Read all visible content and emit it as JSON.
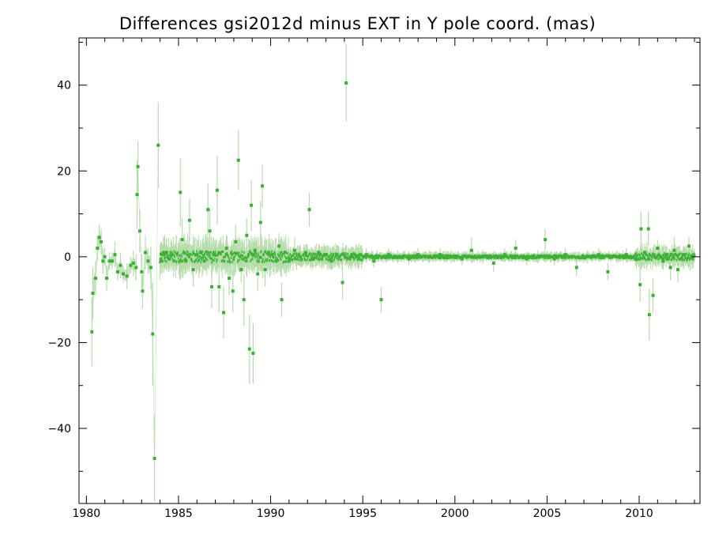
{
  "chart_data": {
    "type": "scatter",
    "title": "Differences gsi2012d minus EXT in Y pole coord. (mas)",
    "xlabel": "",
    "ylabel": "",
    "xlim": [
      1979.6,
      2013.3
    ],
    "ylim": [
      -57.5,
      51.0
    ],
    "x_ticks": [
      1980,
      1985,
      1990,
      1995,
      2000,
      2005,
      2010
    ],
    "x_tick_labels": [
      "1980",
      "1985",
      "1990",
      "1995",
      "2000",
      "2005",
      "2010"
    ],
    "y_ticks": [
      -40,
      -20,
      0,
      20,
      40
    ],
    "y_tick_labels": [
      "−40",
      "−20",
      "0",
      "20",
      "40"
    ],
    "grid": false,
    "legend": "none",
    "colors": {
      "point": "#3cb035",
      "errorbar": "#b5dcaa",
      "axis": "#000000"
    },
    "series": [
      {
        "points": [
          [
            1980.3,
            -17.5,
            8
          ],
          [
            1980.35,
            -8.5,
            6
          ],
          [
            1980.5,
            -5,
            4
          ],
          [
            1980.6,
            2,
            3
          ],
          [
            1980.7,
            4.5,
            3
          ],
          [
            1980.8,
            3.5,
            3
          ],
          [
            1980.9,
            -1,
            3
          ],
          [
            1981.0,
            0,
            2
          ],
          [
            1981.1,
            -5,
            3
          ],
          [
            1981.25,
            -1,
            2
          ],
          [
            1981.4,
            -1,
            2
          ],
          [
            1981.55,
            0.5,
            3
          ],
          [
            1981.7,
            -3.5,
            2
          ],
          [
            1981.85,
            -2,
            3
          ],
          [
            1982.0,
            -4,
            2
          ],
          [
            1982.2,
            -4.5,
            3
          ],
          [
            1982.4,
            -2,
            2
          ],
          [
            1982.55,
            -1.5,
            3
          ],
          [
            1982.7,
            -2.5,
            3
          ],
          [
            1982.75,
            14.5,
            8
          ],
          [
            1982.8,
            21,
            6
          ],
          [
            1982.9,
            6,
            5
          ],
          [
            1983.0,
            -3.5,
            4
          ],
          [
            1983.05,
            -8,
            4
          ],
          [
            1983.2,
            1,
            4
          ],
          [
            1983.35,
            -1,
            3
          ],
          [
            1983.5,
            -2.5,
            5
          ],
          [
            1983.6,
            -18,
            12
          ],
          [
            1983.7,
            -47,
            10
          ],
          [
            1983.9,
            26,
            10
          ],
          [
            1984.05,
            -1,
            3
          ],
          [
            1984.2,
            0.5,
            2
          ],
          [
            1984.35,
            1,
            3
          ],
          [
            1984.5,
            -0.5,
            2
          ],
          [
            1984.65,
            0.5,
            2
          ],
          [
            1985.1,
            15,
            8
          ],
          [
            1985.2,
            4,
            5
          ],
          [
            1985.4,
            -1,
            3
          ],
          [
            1985.6,
            8.5,
            5
          ],
          [
            1985.8,
            -3,
            4
          ],
          [
            1986.0,
            0.5,
            2
          ],
          [
            1986.2,
            1,
            3
          ],
          [
            1986.4,
            -1,
            2
          ],
          [
            1986.6,
            11,
            6
          ],
          [
            1986.7,
            6,
            5
          ],
          [
            1986.8,
            -7,
            5
          ],
          [
            1986.95,
            0.5,
            2
          ],
          [
            1987.1,
            15.5,
            8
          ],
          [
            1987.2,
            -7,
            6
          ],
          [
            1987.45,
            -13,
            6
          ],
          [
            1987.6,
            2,
            3
          ],
          [
            1987.75,
            -5,
            4
          ],
          [
            1987.95,
            -8,
            5
          ],
          [
            1988.1,
            3.5,
            4
          ],
          [
            1988.25,
            22.5,
            7
          ],
          [
            1988.4,
            -3,
            3
          ],
          [
            1988.55,
            -10,
            6
          ],
          [
            1988.7,
            5,
            4
          ],
          [
            1988.85,
            -21.5,
            8
          ],
          [
            1988.95,
            12,
            6
          ],
          [
            1989.05,
            -22.5,
            7
          ],
          [
            1989.15,
            1.5,
            3
          ],
          [
            1989.3,
            -4,
            4
          ],
          [
            1989.45,
            8,
            5
          ],
          [
            1989.55,
            16.5,
            5
          ],
          [
            1989.7,
            -3,
            4
          ],
          [
            1989.9,
            1,
            3
          ],
          [
            1990.1,
            0.5,
            2
          ],
          [
            1990.3,
            -1,
            2
          ],
          [
            1990.45,
            2.5,
            3
          ],
          [
            1990.6,
            -10,
            4
          ],
          [
            1990.8,
            1,
            3
          ],
          [
            1991.0,
            -1,
            2
          ],
          [
            1991.3,
            1.5,
            3
          ],
          [
            1991.6,
            0,
            2
          ],
          [
            1991.9,
            1,
            2
          ],
          [
            1992.1,
            11,
            4
          ],
          [
            1992.3,
            -0.5,
            2
          ],
          [
            1992.6,
            1,
            2
          ],
          [
            1993.0,
            0.5,
            2
          ],
          [
            1993.3,
            -1,
            2
          ],
          [
            1993.6,
            0.5,
            2
          ],
          [
            1993.9,
            -6,
            4
          ],
          [
            1994.1,
            40.5,
            9
          ],
          [
            1994.4,
            0.5,
            2
          ],
          [
            1994.8,
            -0.5,
            2
          ],
          [
            1995.2,
            0.5,
            1.5
          ],
          [
            1995.6,
            -1,
            1.5
          ],
          [
            1996.0,
            -10,
            3
          ],
          [
            1996.4,
            0.5,
            1.5
          ],
          [
            1996.9,
            0,
            1.5
          ],
          [
            1997.5,
            -0.5,
            1.5
          ],
          [
            1998.0,
            0.5,
            1.5
          ],
          [
            1998.6,
            0,
            1.5
          ],
          [
            1999.2,
            0.5,
            1.5
          ],
          [
            1999.8,
            0,
            1.5
          ],
          [
            2000.4,
            -0.5,
            1.5
          ],
          [
            2000.9,
            1.5,
            3
          ],
          [
            2001.5,
            0,
            1.5
          ],
          [
            2002.1,
            -1.5,
            2
          ],
          [
            2002.7,
            0.5,
            1.5
          ],
          [
            2003.3,
            2,
            2
          ],
          [
            2003.9,
            -0.5,
            1.5
          ],
          [
            2004.5,
            0,
            1.5
          ],
          [
            2004.9,
            4,
            2.5
          ],
          [
            2005.4,
            -0.5,
            1.5
          ],
          [
            2006.0,
            0.5,
            1.5
          ],
          [
            2006.6,
            -2.5,
            2
          ],
          [
            2007.2,
            0,
            1.5
          ],
          [
            2007.8,
            0.5,
            1.5
          ],
          [
            2008.3,
            -3.5,
            2
          ],
          [
            2008.8,
            0,
            1.5
          ],
          [
            2009.3,
            0.5,
            1.5
          ],
          [
            2009.8,
            -0.5,
            1.5
          ],
          [
            2010.05,
            -6.5,
            4
          ],
          [
            2010.1,
            6.5,
            4
          ],
          [
            2010.3,
            1,
            2
          ],
          [
            2010.5,
            6.5,
            4
          ],
          [
            2010.55,
            -13.5,
            6
          ],
          [
            2010.75,
            -9,
            4
          ],
          [
            2011.0,
            2,
            2
          ],
          [
            2011.3,
            -1,
            2
          ],
          [
            2011.5,
            0.5,
            2
          ],
          [
            2011.7,
            -2.5,
            3
          ],
          [
            2011.9,
            1.5,
            3
          ],
          [
            2012.1,
            -3,
            3
          ],
          [
            2012.4,
            0.5,
            2
          ],
          [
            2012.7,
            2.5,
            2
          ],
          [
            2012.9,
            0,
            1.5
          ]
        ]
      }
    ]
  }
}
